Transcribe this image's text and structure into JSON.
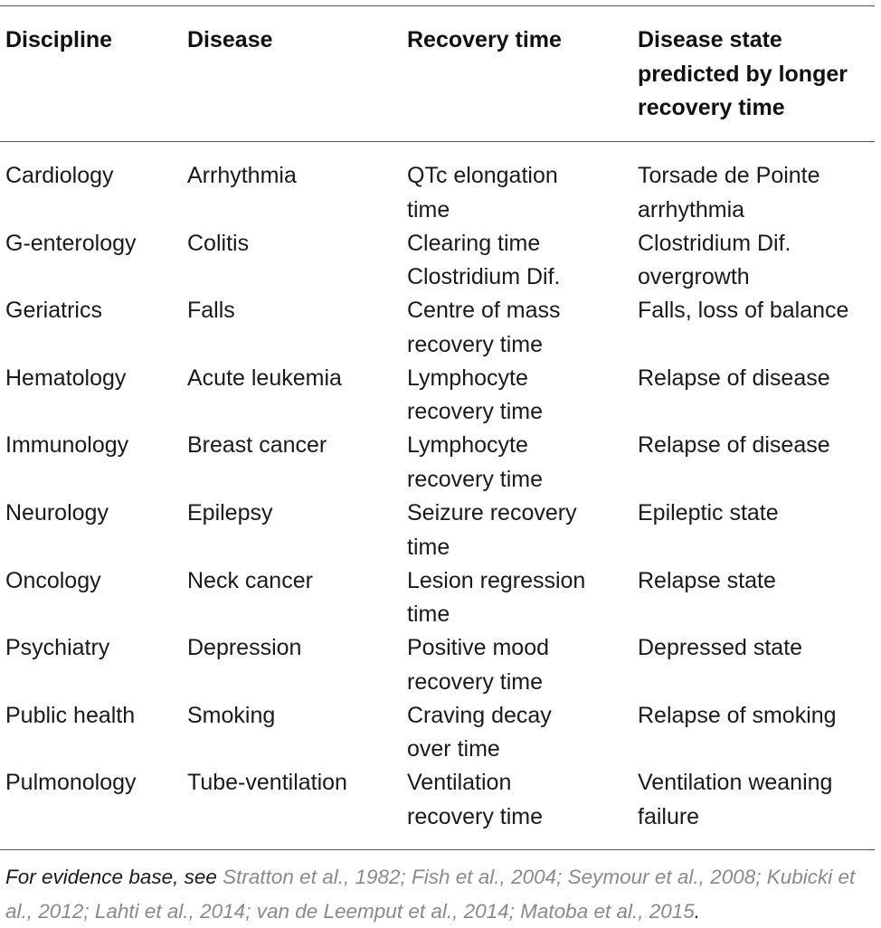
{
  "table": {
    "headers": [
      "Discipline",
      "Disease",
      "Recovery time",
      "Disease state\npredicted by longer\nrecovery time"
    ],
    "rows": [
      [
        "Cardiology",
        "Arrhythmia",
        "QTc elongation\ntime",
        "Torsade de Pointe\narrhythmia"
      ],
      [
        "G-enterology",
        "Colitis",
        "Clearing time\nClostridium Dif.",
        "Clostridium Dif.\novergrowth"
      ],
      [
        "Geriatrics",
        "Falls",
        "Centre of mass\nrecovery time",
        "Falls, loss of balance"
      ],
      [
        "Hematology",
        "Acute leukemia",
        "Lymphocyte\nrecovery time",
        "Relapse of disease"
      ],
      [
        "Immunology",
        "Breast cancer",
        "Lymphocyte\nrecovery time",
        "Relapse of disease"
      ],
      [
        "Neurology",
        "Epilepsy",
        "Seizure recovery\ntime",
        "Epileptic state"
      ],
      [
        "Oncology",
        "Neck cancer",
        "Lesion regression\ntime",
        "Relapse state"
      ],
      [
        "Psychiatry",
        "Depression",
        "Positive mood\nrecovery time",
        "Depressed state"
      ],
      [
        "Public health",
        "Smoking",
        "Craving decay\nover time",
        "Relapse of smoking"
      ],
      [
        "Pulmonology",
        "Tube-ventilation",
        "Ventilation\nrecovery time",
        "Ventilation weaning\nfailure"
      ]
    ]
  },
  "footnote": {
    "lead": "For evidence base, see ",
    "references": "Stratton et al., 1982; Fish et al., 2004; Seymour et al., 2008; Kubicki et al., 2012; Lahti et al., 2014; van de Leemput et al., 2014; Matoba et al., 2015",
    "end": "."
  },
  "colors": {
    "text": "#1a1a1a",
    "reference_link": "#8a8a8a",
    "rule": "#555555"
  }
}
